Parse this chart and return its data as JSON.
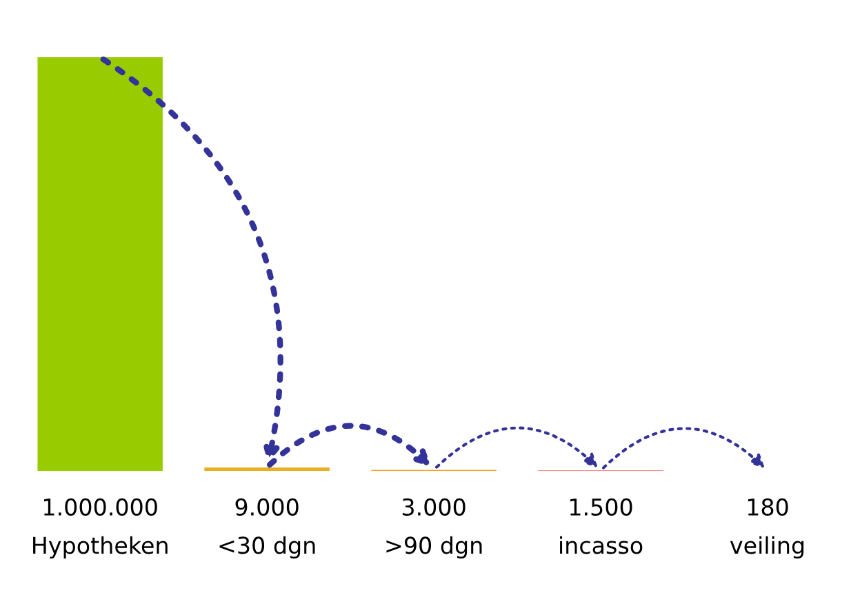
{
  "chart_data": {
    "type": "bar",
    "categories": [
      "Hypotheken",
      "<30 dgn",
      ">90 dgn",
      "incasso",
      "veiling"
    ],
    "values": [
      1000000,
      9000,
      3000,
      1500,
      180
    ],
    "value_labels": [
      "1.000.000",
      "9.000",
      "3.000",
      "1.500",
      "180"
    ],
    "colors": [
      "#99cc00",
      "#e8b020",
      "#f5a020",
      "#e01010",
      "#ff3030"
    ],
    "grid": false,
    "legend": false
  }
}
